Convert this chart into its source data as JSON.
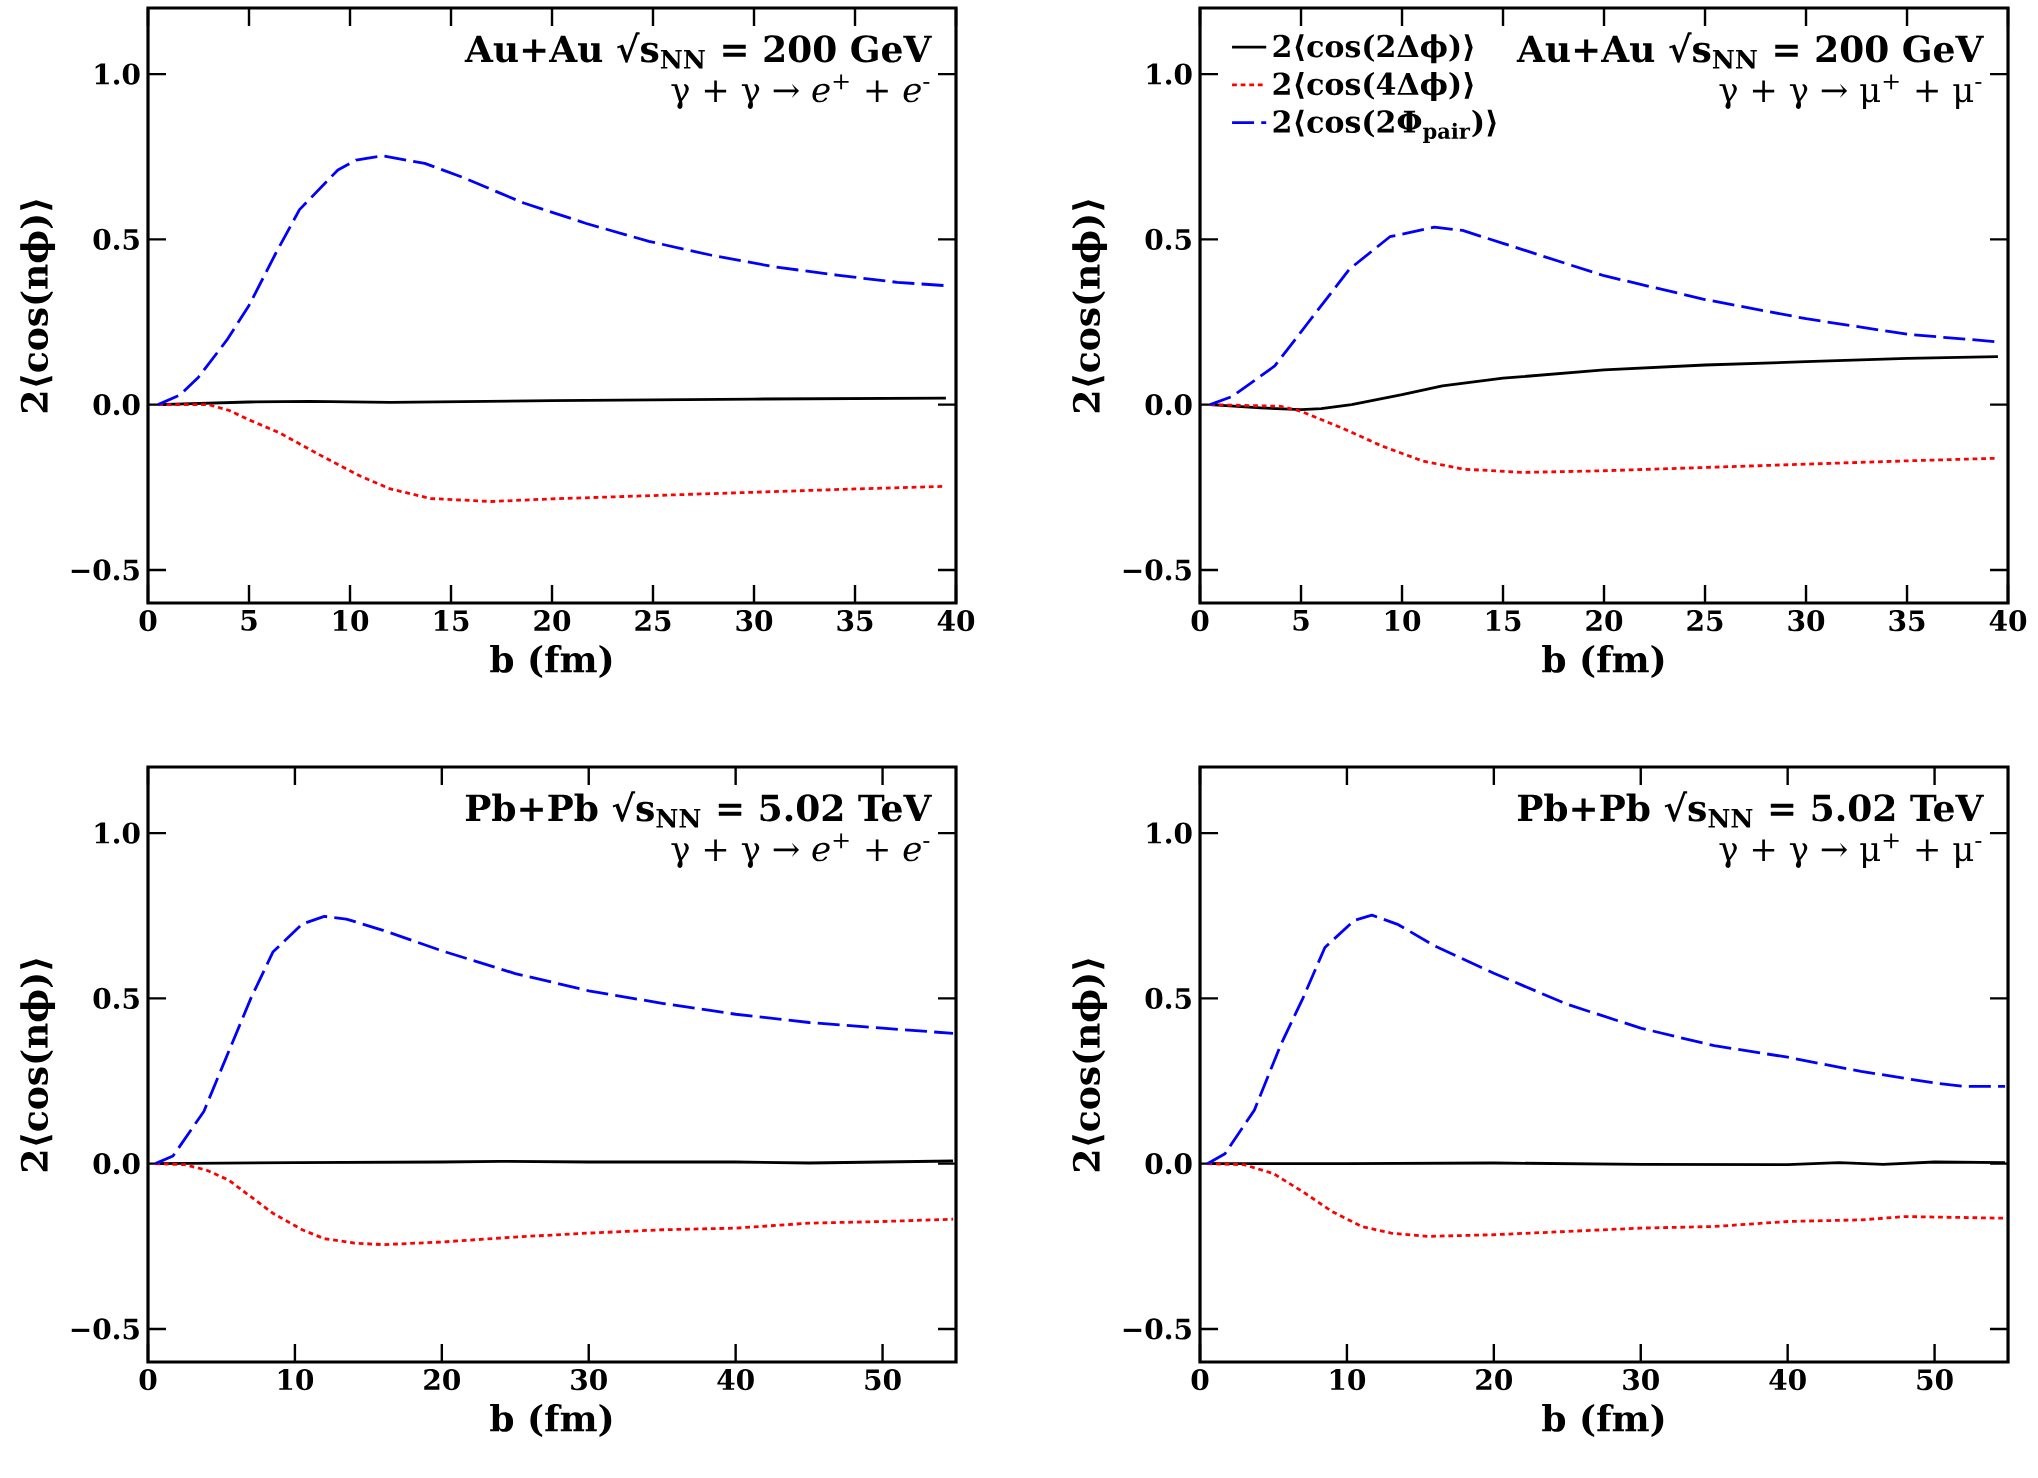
{
  "chart_data": [
    {
      "type": "line",
      "title": "Au+Au  √s$_{NN}$ = 200 GeV",
      "subtitle": "γ + γ → *e*$^{+}$ + *e*$^{-}$",
      "xlabel": "b (fm)",
      "ylabel": "2⟨cos(nϕ)⟩",
      "xlim": [
        0,
        40
      ],
      "xticks": [
        0,
        5,
        10,
        15,
        20,
        25,
        30,
        35,
        40
      ],
      "ylim": [
        -0.6,
        1.2
      ],
      "yticks": [
        {
          "value": -0.5,
          "label": "−0.5"
        },
        {
          "value": 0,
          "label": "0.0"
        },
        {
          "value": 0.5,
          "label": "0.5"
        },
        {
          "value": 1,
          "label": "1.0"
        }
      ],
      "series": [
        {
          "color": "#000000",
          "line_style": "solid",
          "x": [
            0.5,
            5,
            8,
            12,
            20,
            30,
            39.5
          ],
          "values": [
            0,
            0.008,
            0.01,
            0.007,
            0.012,
            0.017,
            0.02
          ]
        },
        {
          "color": "#ff0000",
          "line_style": "dotted",
          "x": [
            0.5,
            3,
            4,
            5,
            6.5,
            8.5,
            10.5,
            12,
            14,
            17,
            20,
            25,
            30,
            35,
            39.5
          ],
          "values": [
            0,
            0,
            -0.017,
            -0.046,
            -0.085,
            -0.152,
            -0.216,
            -0.255,
            -0.284,
            -0.293,
            -0.285,
            -0.275,
            -0.265,
            -0.255,
            -0.247
          ]
        },
        {
          "color": "#0000ff",
          "line_style": "dashed",
          "x": [
            0.5,
            1.6,
            2.5,
            3.9,
            5,
            6.3,
            7.5,
            9.4,
            10.3,
            11.6,
            13.7,
            15.6,
            18.6,
            21.7,
            24.8,
            27.9,
            31,
            34.1,
            37.1,
            39.5
          ],
          "values": [
            0,
            0.03,
            0.083,
            0.195,
            0.3,
            0.455,
            0.59,
            0.71,
            0.74,
            0.753,
            0.73,
            0.687,
            0.61,
            0.548,
            0.494,
            0.452,
            0.417,
            0.392,
            0.37,
            0.36
          ]
        }
      ]
    },
    {
      "type": "line",
      "title": "Au+Au  √s$_{NN}$ = 200 GeV",
      "subtitle": "γ + γ → μ$^{+}$ + μ$^{-}$",
      "xlabel": "b (fm)",
      "ylabel": "2⟨cos(nϕ)⟩",
      "xlim": [
        0,
        40
      ],
      "xticks": [
        0,
        5,
        10,
        15,
        20,
        25,
        30,
        35,
        40
      ],
      "ylim": [
        -0.6,
        1.2
      ],
      "yticks": [
        {
          "value": -0.5,
          "label": "−0.5"
        },
        {
          "value": 0,
          "label": "0.0"
        },
        {
          "value": 0.5,
          "label": "0.5"
        },
        {
          "value": 1,
          "label": "1.0"
        }
      ],
      "legend": "top left",
      "series": [
        {
          "name": "2⟨cos(2Δϕ)⟩",
          "color": "#000000",
          "line_style": "solid",
          "x": [
            0.5,
            3,
            5,
            6,
            7.5,
            10,
            12,
            15,
            20,
            25,
            30,
            35,
            39.5
          ],
          "values": [
            0,
            -0.01,
            -0.015,
            -0.012,
            0,
            0.03,
            0.057,
            0.08,
            0.105,
            0.12,
            0.13,
            0.14,
            0.145
          ]
        },
        {
          "name": "2⟨cos(4Δϕ)⟩",
          "color": "#ff0000",
          "line_style": "dotted",
          "x": [
            0.5,
            4,
            5,
            7,
            9,
            11,
            13,
            16,
            20,
            25,
            30,
            35,
            39.5
          ],
          "values": [
            0,
            -0.005,
            -0.02,
            -0.07,
            -0.125,
            -0.17,
            -0.195,
            -0.205,
            -0.2,
            -0.19,
            -0.18,
            -0.17,
            -0.162
          ]
        },
        {
          "name": "2⟨cos(2Φ$_{pair}$)⟩",
          "color": "#0000ff",
          "line_style": "dashed",
          "x": [
            0.5,
            1.6,
            3.7,
            5.3,
            7.4,
            9.4,
            11.6,
            13,
            15,
            20,
            25,
            30,
            35,
            39.5
          ],
          "values": [
            0,
            0.025,
            0.117,
            0.244,
            0.41,
            0.508,
            0.537,
            0.527,
            0.488,
            0.39,
            0.318,
            0.26,
            0.213,
            0.19
          ]
        }
      ]
    },
    {
      "type": "line",
      "title": "Pb+Pb  √s$_{NN}$ = 5.02 TeV",
      "subtitle": "γ + γ → *e*$^{+}$ + *e*$^{-}$",
      "xlabel": "b (fm)",
      "ylabel": "2⟨cos(nϕ)⟩",
      "xlim": [
        0,
        55
      ],
      "xticks": [
        0,
        10,
        20,
        30,
        40,
        50
      ],
      "ylim": [
        -0.6,
        1.2
      ],
      "yticks": [
        {
          "value": -0.5,
          "label": "−0.5"
        },
        {
          "value": 0,
          "label": "0.0"
        },
        {
          "value": 0.5,
          "label": "0.5"
        },
        {
          "value": 1,
          "label": "1.0"
        }
      ],
      "series": [
        {
          "color": "#000000",
          "line_style": "solid",
          "x": [
            0.5,
            10,
            20,
            24,
            30,
            40,
            45,
            54.8
          ],
          "values": [
            0,
            0.003,
            0.005,
            0.007,
            0.005,
            0.005,
            0.002,
            0.008
          ]
        },
        {
          "color": "#ff0000",
          "line_style": "dotted",
          "x": [
            0.5,
            2.5,
            4,
            5.5,
            7,
            8.5,
            10.5,
            12,
            14,
            16,
            20,
            25,
            30,
            35,
            40,
            45,
            50,
            54.8
          ],
          "values": [
            0,
            -0.003,
            -0.02,
            -0.05,
            -0.1,
            -0.15,
            -0.2,
            -0.227,
            -0.24,
            -0.245,
            -0.237,
            -0.222,
            -0.21,
            -0.2,
            -0.195,
            -0.18,
            -0.175,
            -0.168
          ]
        },
        {
          "color": "#0000ff",
          "line_style": "dashed",
          "x": [
            0.5,
            1.7,
            3.8,
            5.5,
            7,
            8.5,
            10.5,
            12,
            13.5,
            16,
            20,
            25,
            30,
            35,
            40,
            45,
            50,
            54.8
          ],
          "values": [
            0,
            0.023,
            0.158,
            0.34,
            0.5,
            0.64,
            0.725,
            0.748,
            0.74,
            0.706,
            0.644,
            0.575,
            0.523,
            0.485,
            0.452,
            0.427,
            0.41,
            0.394
          ]
        }
      ]
    },
    {
      "type": "line",
      "title": "Pb+Pb  √s$_{NN}$ = 5.02 TeV",
      "subtitle": "γ + γ → μ$^{+}$ + μ$^{-}$",
      "xlabel": "b (fm)",
      "ylabel": "2⟨cos(nϕ)⟩",
      "xlim": [
        0,
        55
      ],
      "xticks": [
        0,
        10,
        20,
        30,
        40,
        50
      ],
      "ylim": [
        -0.6,
        1.2
      ],
      "yticks": [
        {
          "value": -0.5,
          "label": "−0.5"
        },
        {
          "value": 0,
          "label": "0.0"
        },
        {
          "value": 0.5,
          "label": "0.5"
        },
        {
          "value": 1,
          "label": "1.0"
        }
      ],
      "series": [
        {
          "color": "#000000",
          "line_style": "solid",
          "x": [
            0.5,
            10,
            20,
            30,
            40,
            43.5,
            46.5,
            50,
            54.8
          ],
          "values": [
            0,
            0,
            0.002,
            -0.002,
            -0.003,
            0.003,
            -0.002,
            0.005,
            0.003
          ]
        },
        {
          "color": "#ff0000",
          "line_style": "dotted",
          "x": [
            0.5,
            3,
            5,
            7,
            9,
            11,
            13,
            15.5,
            20,
            25,
            30,
            35,
            40,
            45,
            48,
            54.8
          ],
          "values": [
            0,
            -0.003,
            -0.03,
            -0.085,
            -0.145,
            -0.19,
            -0.21,
            -0.22,
            -0.215,
            -0.205,
            -0.195,
            -0.19,
            -0.175,
            -0.17,
            -0.16,
            -0.165
          ]
        },
        {
          "color": "#0000ff",
          "line_style": "dashed",
          "x": [
            0.5,
            1.7,
            3.7,
            5.5,
            7,
            8.5,
            10.5,
            11.7,
            13.5,
            16,
            20,
            25,
            30,
            35,
            40,
            45,
            50,
            52,
            54.8
          ],
          "values": [
            0,
            0.03,
            0.162,
            0.36,
            0.5,
            0.654,
            0.736,
            0.752,
            0.723,
            0.658,
            0.576,
            0.482,
            0.41,
            0.357,
            0.322,
            0.279,
            0.244,
            0.234,
            0.234
          ]
        }
      ]
    }
  ]
}
